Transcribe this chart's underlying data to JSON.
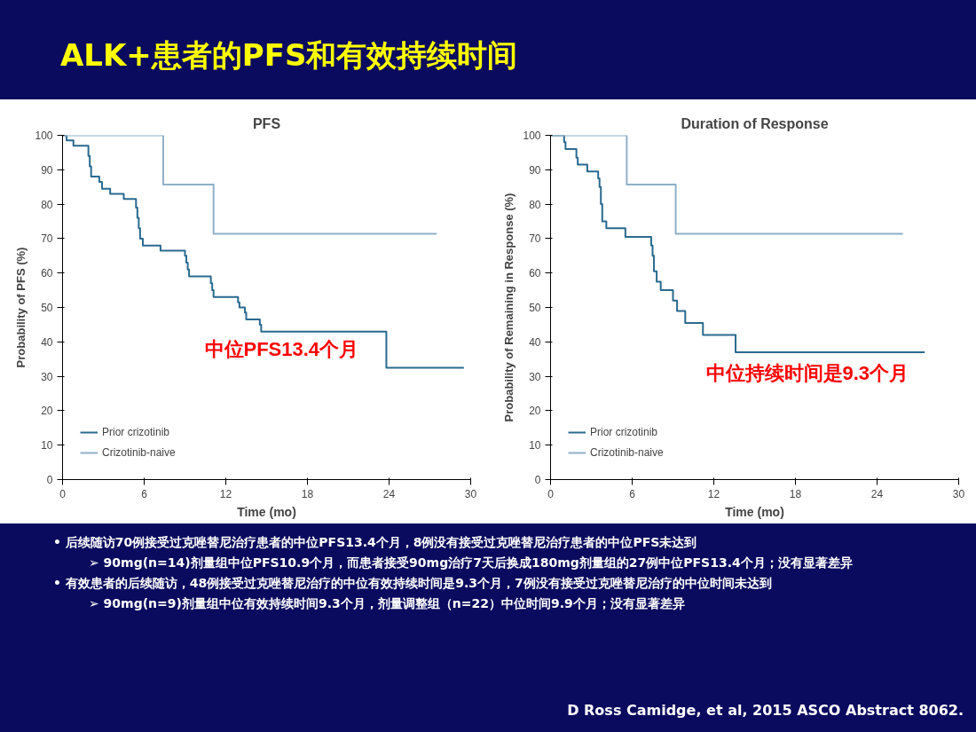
{
  "chart_data": [
    {
      "type": "other",
      "title": "ALK+患者的PFS和有效持续时间",
      "annotations": [
        "• 后续随访70例接受过克唑替尼治疗患者的中位PFS13.4个月，8例没有接受过克唑替尼治疗患者的中位PFS未达到",
        "➢ 90mg(n=14)剂量组中位PFS10.9个月，而患者接受90mg治疗7天后换成180mg剂量组的27例中位PFS13.4个月；没有显著差异",
        "• 有效患者的后续随访，48例接受过克唑替尼治疗的中位有效持续时间是9.3个月，7例没有接受过克唑替尼治疗的中位时间未达到",
        "➢ 90mg(n=9)剂量组中位有效持续时间9.3个月，剂量调整组（n=22）中位时间9.9个月；没有显著差异",
        "D Ross Camidge, et al, 2015 ASCO Abstract  8062."
      ]
    },
    {
      "type": "step",
      "title": "PFS",
      "xlabel": "Time (mo)",
      "ylabel": "Probability of PFS (%)",
      "xlim": [
        0,
        30
      ],
      "xticks": [
        0,
        6,
        12,
        18,
        24,
        30
      ],
      "ylim": [
        0,
        100
      ],
      "yticks": [
        0,
        10,
        20,
        30,
        40,
        50,
        60,
        70,
        80,
        90,
        100
      ],
      "legend": "bottom left",
      "annotations": [
        "中位PFS13.4个月"
      ],
      "series": [
        {
          "name": "Prior crizotinib",
          "color": "#2a6a8e",
          "x": [
            0,
            0.3,
            0.8,
            1.9,
            2.0,
            2.1,
            2.7,
            2.9,
            3.5,
            4.5,
            5.4,
            5.5,
            5.6,
            5.7,
            5.9,
            7.2,
            9.0,
            9.1,
            9.2,
            9.3,
            10.9,
            11.0,
            11.1,
            12.9,
            13.0,
            13.4,
            13.5,
            14.5,
            14.6,
            23.8,
            29.5
          ],
          "values": [
            100,
            98.5,
            97,
            94,
            91,
            88,
            86.5,
            84.5,
            83,
            81.5,
            79,
            76,
            73,
            70,
            68,
            66.5,
            65,
            63,
            61,
            59,
            57,
            55,
            53,
            51.5,
            50,
            48.5,
            46.5,
            45,
            43,
            32.5,
            32.5
          ]
        },
        {
          "name": "Crizotinib-naive",
          "color": "#8fb0c8",
          "x": [
            0,
            7.4,
            11.1,
            27.5
          ],
          "values": [
            100,
            85.7,
            71.4,
            71.4
          ]
        }
      ]
    },
    {
      "type": "step",
      "title": "Duration of Response",
      "xlabel": "Time (mo)",
      "ylabel": "Probability of Remaining in Response (%)",
      "xlim": [
        0,
        30
      ],
      "xticks": [
        0,
        6,
        12,
        18,
        24,
        30
      ],
      "ylim": [
        0,
        100
      ],
      "yticks": [
        0,
        10,
        20,
        30,
        40,
        50,
        60,
        70,
        80,
        90,
        100
      ],
      "legend": "bottom left",
      "annotations": [
        "中位持续时间是9.3个月"
      ],
      "series": [
        {
          "name": "Prior crizotinib",
          "color": "#2a6a8e",
          "x": [
            0,
            1.0,
            1.1,
            1.9,
            2.0,
            2.7,
            3.5,
            3.6,
            3.7,
            3.8,
            4.1,
            5.5,
            7.4,
            7.5,
            7.6,
            7.8,
            8.1,
            9.0,
            9.3,
            9.9,
            11.2,
            13.6,
            27.5
          ],
          "values": [
            100,
            98,
            96,
            93.5,
            91.5,
            89.5,
            87.5,
            85,
            80,
            75,
            73,
            70.5,
            68,
            65,
            60.5,
            57.5,
            55,
            52,
            49,
            45.5,
            42,
            37,
            37
          ]
        },
        {
          "name": "Crizotinib-naive",
          "color": "#8fb0c8",
          "x": [
            0,
            5.6,
            9.2,
            25.9
          ],
          "values": [
            100,
            85.7,
            71.4,
            71.4
          ]
        }
      ]
    }
  ]
}
